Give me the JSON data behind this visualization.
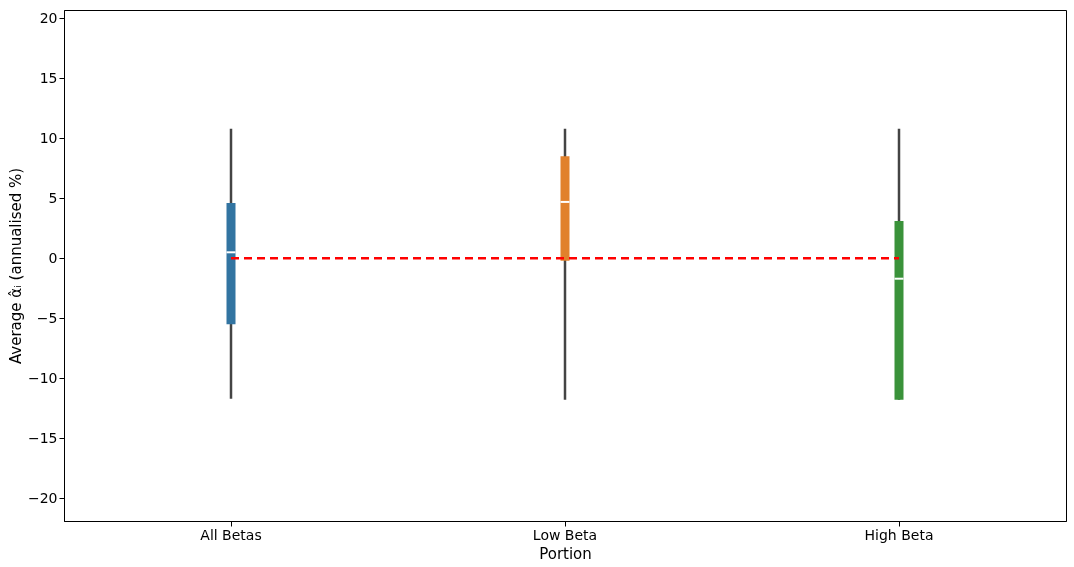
{
  "chart_data": {
    "type": "box",
    "xlabel": "Portion",
    "ylabel": "Average α̂ᵢ (annualised %)",
    "categories": [
      "All Betas",
      "Low Beta",
      "High Beta"
    ],
    "colors": [
      "#3274a1",
      "#e1812c",
      "#3a923a"
    ],
    "boxes": [
      {
        "low": -11.7,
        "q1": -5.5,
        "median": 0.5,
        "q3": 4.6,
        "high": 10.8
      },
      {
        "low": -11.8,
        "q1": -0.2,
        "median": 4.7,
        "q3": 8.5,
        "high": 10.8
      },
      {
        "low": -11.8,
        "q1": -11.8,
        "median": -1.7,
        "q3": 3.1,
        "high": 10.8
      }
    ],
    "ylim": [
      -21.9,
      20.7
    ],
    "yticks": [
      -20,
      -15,
      -10,
      -5,
      0,
      5,
      10,
      15,
      20
    ],
    "ref_lines": [
      {
        "axis": "y",
        "value": 0,
        "color": "#ff0000",
        "line_style": "dashed"
      }
    ]
  }
}
